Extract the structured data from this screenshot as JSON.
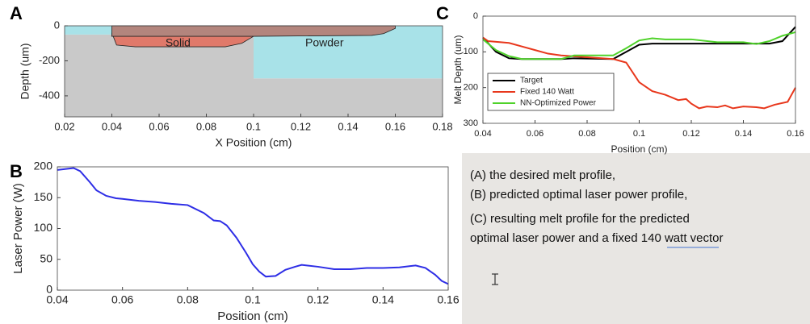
{
  "chart_data": [
    {
      "type": "area",
      "panel": "A",
      "xlabel": "X Position (cm)",
      "ylabel": "Depth (um)",
      "xlim": [
        0.02,
        0.18
      ],
      "xticks": [
        0.02,
        0.04,
        0.06,
        0.08,
        0.1,
        0.12,
        0.14,
        0.16,
        0.18
      ],
      "ylim": [
        -520,
        0
      ],
      "yticks": [
        0,
        -200,
        -400
      ],
      "series": [
        {
          "name": "Solid",
          "color": "#c9c9c9",
          "x": [
            0.02,
            0.1,
            0.1,
            0.18,
            0.18,
            0.02
          ],
          "values": [
            -50,
            -50,
            -300,
            -300,
            -520,
            -520
          ]
        },
        {
          "name": "Powder",
          "color": "#a8e2e8",
          "x": [
            0.02,
            0.18,
            0.18,
            0.1,
            0.1,
            0.02
          ],
          "values": [
            0,
            0,
            -300,
            -300,
            -50,
            -50
          ]
        },
        {
          "color": "#e0796a",
          "x": [
            0.04,
            0.042,
            0.05,
            0.088,
            0.095,
            0.1,
            0.04
          ],
          "values": [
            -40,
            -110,
            -120,
            -120,
            -100,
            -60,
            -60
          ]
        },
        {
          "color": "#b3857d",
          "x": [
            0.04,
            0.16,
            0.16,
            0.155,
            0.15,
            0.1,
            0.04
          ],
          "values": [
            0,
            0,
            -15,
            -45,
            -55,
            -60,
            -60
          ]
        }
      ]
    },
    {
      "type": "line",
      "panel": "B",
      "xlabel": "Position (cm)",
      "ylabel": "Laser Power (W)",
      "xlim": [
        0.04,
        0.16
      ],
      "xticks": [
        0.04,
        0.06,
        0.08,
        0.1,
        0.12,
        0.14,
        0.16
      ],
      "ylim": [
        0,
        200
      ],
      "yticks": [
        0,
        50,
        100,
        150,
        200
      ],
      "series": [
        {
          "color": "#2e2ee6",
          "x": [
            0.04,
            0.045,
            0.047,
            0.05,
            0.052,
            0.055,
            0.058,
            0.06,
            0.065,
            0.07,
            0.075,
            0.08,
            0.085,
            0.088,
            0.09,
            0.092,
            0.095,
            0.098,
            0.1,
            0.102,
            0.104,
            0.107,
            0.11,
            0.113,
            0.115,
            0.12,
            0.125,
            0.13,
            0.135,
            0.14,
            0.145,
            0.15,
            0.153,
            0.156,
            0.158,
            0.16
          ],
          "values": [
            195,
            198,
            193,
            175,
            162,
            153,
            149,
            148,
            145,
            143,
            140,
            138,
            125,
            113,
            112,
            105,
            85,
            60,
            42,
            30,
            22,
            23,
            33,
            38,
            41,
            38,
            34,
            34,
            36,
            36,
            37,
            40,
            36,
            25,
            15,
            10
          ]
        }
      ]
    },
    {
      "type": "line",
      "panel": "C",
      "xlabel": "Position (cm)",
      "ylabel": "Melt Depth (um)",
      "xlim": [
        0.04,
        0.16
      ],
      "xticks": [
        0.04,
        0.06,
        0.08,
        0.1,
        0.12,
        0.14,
        0.16
      ],
      "ylim": [
        0,
        300
      ],
      "yticks": [
        0,
        100,
        200,
        300
      ],
      "y_inverted": true,
      "legend": "lower left",
      "series": [
        {
          "name": "Target",
          "color": "#000000",
          "x": [
            0.04,
            0.045,
            0.05,
            0.055,
            0.07,
            0.075,
            0.09,
            0.095,
            0.1,
            0.105,
            0.15,
            0.155,
            0.16
          ],
          "values": [
            60,
            100,
            118,
            120,
            120,
            118,
            120,
            100,
            80,
            77,
            77,
            70,
            30
          ]
        },
        {
          "name": "Fixed 140 Watt",
          "color": "#e8371c",
          "x": [
            0.04,
            0.042,
            0.05,
            0.055,
            0.06,
            0.065,
            0.07,
            0.08,
            0.09,
            0.095,
            0.1,
            0.105,
            0.11,
            0.115,
            0.118,
            0.12,
            0.123,
            0.126,
            0.13,
            0.133,
            0.136,
            0.14,
            0.145,
            0.148,
            0.152,
            0.157,
            0.16
          ],
          "values": [
            60,
            70,
            75,
            85,
            95,
            105,
            110,
            115,
            120,
            130,
            185,
            210,
            220,
            235,
            232,
            245,
            258,
            253,
            255,
            250,
            258,
            253,
            255,
            258,
            248,
            240,
            200
          ]
        },
        {
          "name": "NN-Optimized Power",
          "color": "#4fd22a",
          "x": [
            0.04,
            0.045,
            0.05,
            0.055,
            0.07,
            0.075,
            0.09,
            0.095,
            0.1,
            0.105,
            0.11,
            0.12,
            0.13,
            0.14,
            0.145,
            0.15,
            0.155,
            0.16
          ],
          "values": [
            65,
            95,
            112,
            120,
            120,
            110,
            110,
            90,
            68,
            62,
            65,
            65,
            73,
            73,
            78,
            70,
            55,
            45
          ]
        }
      ]
    }
  ],
  "caption": {
    "lines": [
      "(A) the desired melt profile,",
      "(B) predicted optimal laser power profile,",
      "(C) resulting melt profile for the predicted",
      "optimal laser power and a fixed 140 watt vector"
    ]
  }
}
